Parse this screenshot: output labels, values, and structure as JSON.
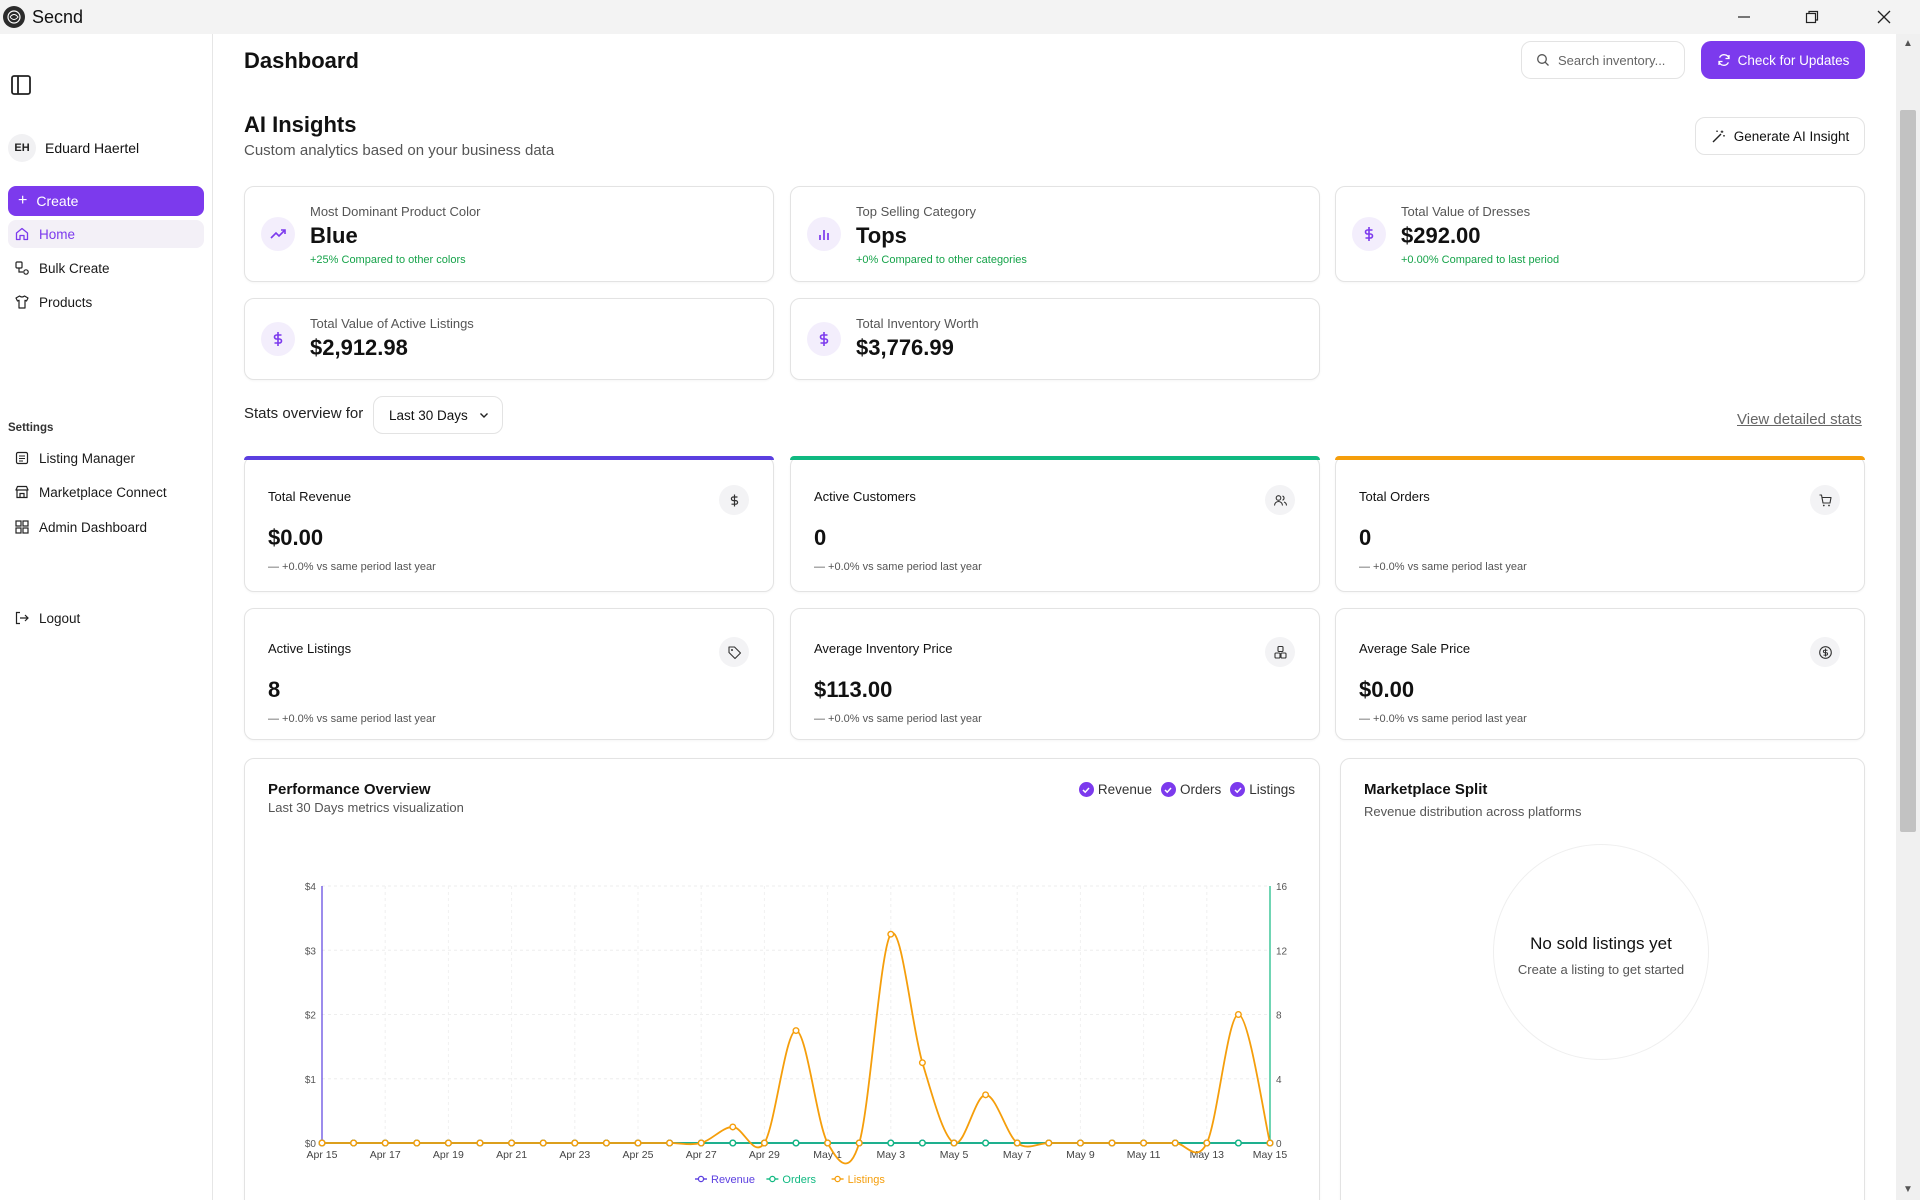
{
  "app": {
    "title": "Secnd"
  },
  "sidebar": {
    "user_initials": "EH",
    "user_name": "Eduard Haertel",
    "create_label": "Create",
    "nav": [
      {
        "label": "Home",
        "icon": "home-icon"
      },
      {
        "label": "Bulk Create",
        "icon": "bulk-create-icon"
      },
      {
        "label": "Products",
        "icon": "shirt-icon"
      }
    ],
    "settings_heading": "Settings",
    "settings": [
      {
        "label": "Listing Manager",
        "icon": "listing-icon"
      },
      {
        "label": "Marketplace Connect",
        "icon": "store-icon"
      },
      {
        "label": "Admin Dashboard",
        "icon": "grid-icon"
      }
    ],
    "logout_label": "Logout"
  },
  "header": {
    "title": "Dashboard",
    "search_placeholder": "Search inventory...",
    "update_label": "Check for Updates"
  },
  "ai": {
    "title": "AI Insights",
    "subtitle": "Custom analytics based on your business data",
    "generate_label": "Generate AI Insight",
    "cards": [
      {
        "label": "Most Dominant Product Color",
        "value": "Blue",
        "change": "+25% Compared to other colors",
        "icon": "trending-up-icon"
      },
      {
        "label": "Top Selling Category",
        "value": "Tops",
        "change": "+0% Compared to other categories",
        "icon": "bar-chart-icon"
      },
      {
        "label": "Total Value of Dresses",
        "value": "$292.00",
        "change": "+0.00% Compared to last period",
        "icon": "dollar-icon"
      },
      {
        "label": "Total Value of Active Listings",
        "value": "$2,912.98",
        "change": "",
        "icon": "dollar-icon"
      },
      {
        "label": "Total Inventory Worth",
        "value": "$3,776.99",
        "change": "",
        "icon": "dollar-icon"
      }
    ]
  },
  "stats": {
    "label": "Stats overview for",
    "range": "Last 30 Days",
    "detail_link": "View detailed stats",
    "cards": [
      {
        "label": "Total Revenue",
        "value": "$0.00",
        "compare": "— +0.0% vs same period last year",
        "icon": "dollar-icon",
        "accent": "#5b3fe0"
      },
      {
        "label": "Active Customers",
        "value": "0",
        "compare": "— +0.0% vs same period last year",
        "icon": "users-icon",
        "accent": "#10b981"
      },
      {
        "label": "Total Orders",
        "value": "0",
        "compare": "— +0.0% vs same period last year",
        "icon": "cart-icon",
        "accent": "#f59e0b"
      },
      {
        "label": "Active Listings",
        "value": "8",
        "compare": "— +0.0% vs same period last year",
        "icon": "tag-icon",
        "accent": ""
      },
      {
        "label": "Average Inventory Price",
        "value": "$113.00",
        "compare": "— +0.0% vs same period last year",
        "icon": "boxes-icon",
        "accent": ""
      },
      {
        "label": "Average Sale Price",
        "value": "$0.00",
        "compare": "— +0.0% vs same period last year",
        "icon": "coin-icon",
        "accent": ""
      }
    ]
  },
  "performance": {
    "title": "Performance Overview",
    "subtitle": "Last 30 Days metrics visualization",
    "toggles": [
      "Revenue",
      "Orders",
      "Listings"
    ]
  },
  "marketplace": {
    "title": "Marketplace Split",
    "subtitle": "Revenue distribution across platforms",
    "empty_title": "No sold listings yet",
    "empty_sub": "Create a listing to get started"
  },
  "chart_data": {
    "type": "line",
    "x": [
      "Apr 15",
      "Apr 16",
      "Apr 17",
      "Apr 18",
      "Apr 19",
      "Apr 20",
      "Apr 21",
      "Apr 22",
      "Apr 23",
      "Apr 24",
      "Apr 25",
      "Apr 26",
      "Apr 27",
      "Apr 28",
      "Apr 29",
      "Apr 30",
      "May 1",
      "May 2",
      "May 3",
      "May 4",
      "May 5",
      "May 6",
      "May 7",
      "May 8",
      "May 9",
      "May 10",
      "May 11",
      "May 12",
      "May 13",
      "May 14",
      "May 15"
    ],
    "xticks": [
      "Apr 15",
      "Apr 17",
      "Apr 19",
      "Apr 21",
      "Apr 23",
      "Apr 25",
      "Apr 27",
      "Apr 29",
      "May 1",
      "May 3",
      "May 5",
      "May 7",
      "May 9",
      "May 11",
      "May 13",
      "May 15"
    ],
    "y_left": {
      "ticks": [
        "$0",
        "$1",
        "$2",
        "$3",
        "$4"
      ],
      "lim": [
        0,
        4
      ]
    },
    "y_right": {
      "ticks": [
        "0",
        "4",
        "8",
        "12",
        "16"
      ],
      "lim": [
        0,
        16
      ]
    },
    "series": [
      {
        "name": "Revenue",
        "axis": "left",
        "color": "#5b3fe0",
        "values": [
          0,
          0,
          0,
          0,
          0,
          0,
          0,
          0,
          0,
          0,
          0,
          0,
          0,
          0,
          0,
          0,
          0,
          0,
          0,
          0,
          0,
          0,
          0,
          0,
          0,
          0,
          0,
          0,
          0,
          0,
          0
        ]
      },
      {
        "name": "Orders",
        "axis": "right",
        "color": "#10b981",
        "values": [
          0,
          0,
          0,
          0,
          0,
          0,
          0,
          0,
          0,
          0,
          0,
          0,
          0,
          0,
          0,
          0,
          0,
          0,
          0,
          0,
          0,
          0,
          0,
          0,
          0,
          0,
          0,
          0,
          0,
          0,
          0
        ]
      },
      {
        "name": "Listings",
        "axis": "right",
        "color": "#f59e0b",
        "values": [
          0,
          0,
          0,
          0,
          0,
          0,
          0,
          0,
          0,
          0,
          0,
          0,
          0,
          1,
          0,
          7,
          0,
          0,
          13,
          5,
          0,
          3,
          0,
          0,
          0,
          0,
          0,
          0,
          0,
          8,
          0
        ]
      }
    ],
    "grid": true,
    "legend": "bottom"
  }
}
